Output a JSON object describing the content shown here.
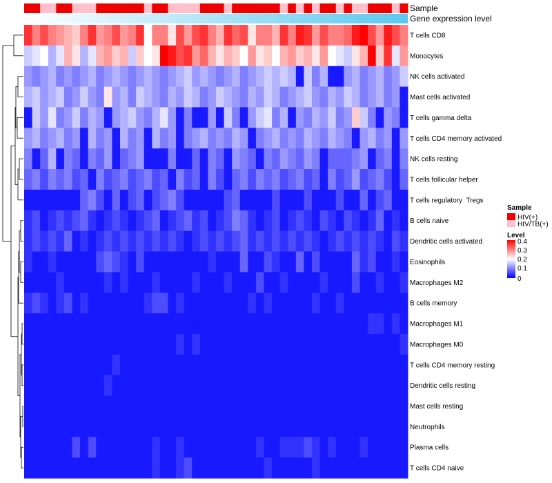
{
  "chart_data": {
    "type": "heatmap",
    "title": "",
    "annotation_tracks": [
      "Sample",
      "Gene expression level"
    ],
    "rows": [
      "T cells CD8",
      "Monocytes",
      "NK cells activated",
      "Mast cells activated",
      "T cells gamma delta",
      "T cells CD4 memory activated",
      "NK cells resting",
      "T cells follicular helper",
      "T cells regulatory  Tregs",
      "B cells naive",
      "Dendritic cells activated",
      "Eosinophils",
      "Macrophages M2",
      "B cells memory",
      "Macrophages M1",
      "Macrophages M0",
      "T cells CD4 memory resting",
      "Dendritic cells resting",
      "Mast cells resting",
      "Neutrophils",
      "Plasma cells",
      "T cells CD4 naive"
    ],
    "sample_groups": [
      "HIV(+)",
      "HIV(+)",
      "HIV/TB(+)",
      "HIV/TB(+)",
      "HIV(+)",
      "HIV(+)",
      "HIV/TB(+)",
      "HIV/TB(+)",
      "HIV/TB(+)",
      "HIV(+)",
      "HIV(+)",
      "HIV(+)",
      "HIV(+)",
      "HIV(+)",
      "HIV(+)",
      "HIV/TB(+)",
      "HIV(+)",
      "HIV(+)",
      "HIV/TB(+)",
      "HIV/TB(+)",
      "HIV/TB(+)",
      "HIV/TB(+)",
      "HIV(+)",
      "HIV(+)",
      "HIV(+)",
      "HIV/TB(+)",
      "HIV(+)",
      "HIV(+)",
      "HIV(+)",
      "HIV(+)",
      "HIV(+)",
      "HIV(+)",
      "HIV/TB(+)",
      "HIV(+)",
      "HIV/TB(+)",
      "HIV(+)",
      "HIV/TB(+)",
      "HIV(+)",
      "HIV(+)",
      "HIV/TB(+)",
      "HIV(+)",
      "HIV/TB(+)",
      "HIV/TB(+)",
      "HIV(+)",
      "HIV(+)",
      "HIV(+)",
      "HIV/TB(+)",
      "HIV(+)"
    ],
    "values": [
      [
        0.36,
        0.3,
        0.34,
        0.3,
        0.28,
        0.26,
        0.24,
        0.3,
        0.36,
        0.28,
        0.3,
        0.34,
        0.28,
        0.3,
        0.36,
        0.2,
        0.3,
        0.3,
        0.22,
        0.34,
        0.28,
        0.34,
        0.36,
        0.3,
        0.26,
        0.36,
        0.32,
        0.34,
        0.22,
        0.3,
        0.3,
        0.26,
        0.36,
        0.3,
        0.38,
        0.36,
        0.28,
        0.34,
        0.3,
        0.3,
        0.32,
        0.38,
        0.4,
        0.34,
        0.28,
        0.38,
        0.34,
        0.3
      ],
      [
        0.16,
        0.18,
        0.2,
        0.14,
        0.18,
        0.26,
        0.22,
        0.14,
        0.18,
        0.26,
        0.28,
        0.24,
        0.26,
        0.16,
        0.24,
        0.2,
        0.22,
        0.4,
        0.38,
        0.34,
        0.36,
        0.28,
        0.32,
        0.26,
        0.22,
        0.26,
        0.24,
        0.2,
        0.28,
        0.22,
        0.24,
        0.2,
        0.26,
        0.28,
        0.24,
        0.26,
        0.22,
        0.28,
        0.2,
        0.18,
        0.16,
        0.22,
        0.26,
        0.4,
        0.24,
        0.36,
        0.18,
        0.28
      ],
      [
        0.12,
        0.1,
        0.12,
        0.14,
        0.1,
        0.12,
        0.1,
        0.12,
        0.14,
        0.1,
        0.12,
        0.14,
        0.12,
        0.1,
        0.12,
        0.14,
        0.12,
        0.1,
        0.12,
        0.14,
        0.16,
        0.12,
        0.14,
        0.12,
        0.1,
        0.12,
        0.14,
        0.1,
        0.12,
        0.14,
        0.16,
        0.14,
        0.16,
        0.14,
        0.02,
        0.16,
        0.1,
        0.14,
        0.02,
        0.02,
        0.12,
        0.14,
        0.1,
        0.12,
        0.14,
        0.1,
        0.12,
        0.16
      ],
      [
        0.14,
        0.16,
        0.12,
        0.14,
        0.16,
        0.1,
        0.12,
        0.16,
        0.12,
        0.1,
        0.22,
        0.12,
        0.14,
        0.1,
        0.16,
        0.14,
        0.12,
        0.1,
        0.14,
        0.12,
        0.16,
        0.14,
        0.1,
        0.12,
        0.16,
        0.14,
        0.12,
        0.1,
        0.14,
        0.12,
        0.16,
        0.14,
        0.1,
        0.12,
        0.14,
        0.16,
        0.12,
        0.1,
        0.14,
        0.12,
        0.16,
        0.14,
        0.1,
        0.12,
        0.14,
        0.1,
        0.12,
        0.02
      ],
      [
        0.02,
        0.16,
        0.12,
        0.18,
        0.1,
        0.12,
        0.16,
        0.1,
        0.14,
        0.12,
        0.02,
        0.12,
        0.14,
        0.16,
        0.12,
        0.1,
        0.14,
        0.18,
        0.12,
        0.02,
        0.1,
        0.02,
        0.02,
        0.12,
        0.02,
        0.16,
        0.1,
        0.02,
        0.12,
        0.16,
        0.18,
        0.1,
        0.14,
        0.02,
        0.12,
        0.1,
        0.14,
        0.12,
        0.16,
        0.1,
        0.12,
        0.24,
        0.16,
        0.1,
        0.02,
        0.12,
        0.1,
        0.02
      ],
      [
        0.12,
        0.14,
        0.1,
        0.12,
        0.14,
        0.1,
        0.12,
        0.02,
        0.14,
        0.1,
        0.12,
        0.02,
        0.14,
        0.1,
        0.12,
        0.02,
        0.14,
        0.1,
        0.12,
        0.02,
        0.1,
        0.12,
        0.14,
        0.1,
        0.12,
        0.1,
        0.14,
        0.12,
        0.02,
        0.1,
        0.12,
        0.14,
        0.1,
        0.12,
        0.1,
        0.14,
        0.12,
        0.1,
        0.14,
        0.12,
        0.1,
        0.02,
        0.12,
        0.14,
        0.1,
        0.12,
        0.02,
        0.12
      ],
      [
        0.1,
        0.02,
        0.08,
        0.14,
        0.02,
        0.1,
        0.08,
        0.02,
        0.1,
        0.08,
        0.12,
        0.02,
        0.08,
        0.1,
        0.12,
        0.02,
        0.02,
        0.02,
        0.1,
        0.02,
        0.02,
        0.08,
        0.02,
        0.1,
        0.08,
        0.02,
        0.12,
        0.1,
        0.08,
        0.02,
        0.1,
        0.08,
        0.12,
        0.1,
        0.08,
        0.12,
        0.1,
        0.02,
        0.08,
        0.08,
        0.08,
        0.1,
        0.12,
        0.02,
        0.08,
        0.1,
        0.02,
        0.1
      ],
      [
        0.08,
        0.1,
        0.06,
        0.1,
        0.08,
        0.1,
        0.06,
        0.08,
        0.02,
        0.1,
        0.06,
        0.08,
        0.1,
        0.06,
        0.08,
        0.1,
        0.06,
        0.08,
        0.02,
        0.1,
        0.06,
        0.08,
        0.02,
        0.1,
        0.06,
        0.02,
        0.08,
        0.1,
        0.06,
        0.1,
        0.08,
        0.1,
        0.06,
        0.08,
        0.1,
        0.06,
        0.08,
        0.02,
        0.1,
        0.06,
        0.08,
        0.12,
        0.06,
        0.08,
        0.1,
        0.06,
        0.02,
        0.08
      ],
      [
        0.02,
        0.02,
        0.02,
        0.02,
        0.02,
        0.02,
        0.02,
        0.08,
        0.1,
        0.06,
        0.02,
        0.08,
        0.02,
        0.06,
        0.08,
        0.02,
        0.06,
        0.08,
        0.1,
        0.06,
        0.02,
        0.02,
        0.02,
        0.02,
        0.02,
        0.06,
        0.08,
        0.02,
        0.02,
        0.02,
        0.02,
        0.06,
        0.02,
        0.02,
        0.02,
        0.06,
        0.02,
        0.02,
        0.02,
        0.06,
        0.02,
        0.02,
        0.08,
        0.02,
        0.06,
        0.08,
        0.02,
        0.02
      ],
      [
        0.04,
        0.06,
        0.02,
        0.04,
        0.06,
        0.04,
        0.06,
        0.08,
        0.04,
        0.02,
        0.04,
        0.06,
        0.04,
        0.02,
        0.04,
        0.06,
        0.08,
        0.02,
        0.04,
        0.06,
        0.08,
        0.04,
        0.06,
        0.02,
        0.04,
        0.06,
        0.1,
        0.08,
        0.04,
        0.02,
        0.04,
        0.06,
        0.02,
        0.04,
        0.06,
        0.04,
        0.02,
        0.06,
        0.04,
        0.02,
        0.06,
        0.04,
        0.02,
        0.04,
        0.08,
        0.02,
        0.04,
        0.02
      ],
      [
        0.04,
        0.06,
        0.04,
        0.06,
        0.04,
        0.08,
        0.02,
        0.04,
        0.02,
        0.04,
        0.06,
        0.04,
        0.06,
        0.04,
        0.06,
        0.04,
        0.06,
        0.04,
        0.06,
        0.04,
        0.02,
        0.04,
        0.06,
        0.04,
        0.06,
        0.04,
        0.06,
        0.08,
        0.04,
        0.06,
        0.04,
        0.06,
        0.04,
        0.06,
        0.04,
        0.06,
        0.04,
        0.02,
        0.04,
        0.06,
        0.04,
        0.06,
        0.04,
        0.06,
        0.04,
        0.02,
        0.06,
        0.04
      ],
      [
        0.04,
        0.02,
        0.02,
        0.04,
        0.02,
        0.02,
        0.02,
        0.02,
        0.02,
        0.06,
        0.08,
        0.06,
        0.04,
        0.02,
        0.06,
        0.02,
        0.02,
        0.02,
        0.02,
        0.02,
        0.02,
        0.02,
        0.02,
        0.04,
        0.02,
        0.02,
        0.02,
        0.08,
        0.02,
        0.02,
        0.06,
        0.04,
        0.02,
        0.02,
        0.08,
        0.02,
        0.06,
        0.02,
        0.02,
        0.02,
        0.02,
        0.08,
        0.04,
        0.06,
        0.02,
        0.02,
        0.04,
        0.02
      ],
      [
        0.02,
        0.02,
        0.02,
        0.02,
        0.04,
        0.02,
        0.02,
        0.02,
        0.02,
        0.02,
        0.04,
        0.02,
        0.04,
        0.02,
        0.02,
        0.02,
        0.04,
        0.02,
        0.02,
        0.02,
        0.02,
        0.04,
        0.02,
        0.02,
        0.02,
        0.04,
        0.02,
        0.02,
        0.02,
        0.06,
        0.02,
        0.02,
        0.04,
        0.02,
        0.02,
        0.02,
        0.02,
        0.04,
        0.02,
        0.02,
        0.02,
        0.06,
        0.02,
        0.02,
        0.04,
        0.02,
        0.02,
        0.04
      ],
      [
        0.04,
        0.06,
        0.04,
        0.02,
        0.04,
        0.06,
        0.02,
        0.04,
        0.02,
        0.02,
        0.02,
        0.02,
        0.02,
        0.02,
        0.02,
        0.04,
        0.06,
        0.06,
        0.02,
        0.04,
        0.02,
        0.02,
        0.02,
        0.02,
        0.02,
        0.02,
        0.02,
        0.02,
        0.04,
        0.02,
        0.04,
        0.02,
        0.02,
        0.02,
        0.02,
        0.02,
        0.04,
        0.02,
        0.02,
        0.04,
        0.02,
        0.02,
        0.02,
        0.02,
        0.02,
        0.02,
        0.02,
        0.02
      ],
      [
        0.02,
        0.02,
        0.02,
        0.02,
        0.02,
        0.02,
        0.02,
        0.02,
        0.02,
        0.02,
        0.02,
        0.02,
        0.02,
        0.02,
        0.02,
        0.02,
        0.02,
        0.02,
        0.02,
        0.02,
        0.02,
        0.02,
        0.02,
        0.02,
        0.02,
        0.02,
        0.02,
        0.02,
        0.02,
        0.02,
        0.02,
        0.02,
        0.02,
        0.02,
        0.02,
        0.02,
        0.02,
        0.02,
        0.02,
        0.02,
        0.02,
        0.02,
        0.02,
        0.04,
        0.04,
        0.02,
        0.04,
        0.02
      ],
      [
        0.02,
        0.02,
        0.02,
        0.02,
        0.02,
        0.02,
        0.02,
        0.02,
        0.02,
        0.02,
        0.02,
        0.02,
        0.02,
        0.02,
        0.02,
        0.02,
        0.02,
        0.02,
        0.02,
        0.04,
        0.02,
        0.04,
        0.02,
        0.02,
        0.02,
        0.02,
        0.02,
        0.02,
        0.02,
        0.02,
        0.02,
        0.02,
        0.02,
        0.02,
        0.02,
        0.02,
        0.02,
        0.02,
        0.02,
        0.02,
        0.02,
        0.02,
        0.02,
        0.02,
        0.02,
        0.02,
        0.02,
        0.04
      ],
      [
        0.02,
        0.02,
        0.02,
        0.02,
        0.02,
        0.02,
        0.02,
        0.02,
        0.02,
        0.02,
        0.02,
        0.04,
        0.02,
        0.02,
        0.02,
        0.02,
        0.02,
        0.02,
        0.02,
        0.02,
        0.02,
        0.02,
        0.02,
        0.02,
        0.02,
        0.02,
        0.02,
        0.02,
        0.02,
        0.02,
        0.02,
        0.02,
        0.02,
        0.02,
        0.02,
        0.02,
        0.02,
        0.02,
        0.02,
        0.02,
        0.02,
        0.02,
        0.02,
        0.02,
        0.02,
        0.02,
        0.02,
        0.02
      ],
      [
        0.02,
        0.02,
        0.02,
        0.02,
        0.02,
        0.02,
        0.02,
        0.02,
        0.02,
        0.02,
        0.04,
        0.02,
        0.02,
        0.02,
        0.02,
        0.02,
        0.02,
        0.02,
        0.02,
        0.02,
        0.02,
        0.02,
        0.02,
        0.02,
        0.02,
        0.02,
        0.02,
        0.02,
        0.02,
        0.02,
        0.02,
        0.02,
        0.02,
        0.02,
        0.02,
        0.02,
        0.02,
        0.02,
        0.02,
        0.02,
        0.02,
        0.02,
        0.02,
        0.02,
        0.02,
        0.02,
        0.02,
        0.02
      ],
      [
        0.02,
        0.02,
        0.02,
        0.02,
        0.02,
        0.02,
        0.02,
        0.02,
        0.02,
        0.02,
        0.02,
        0.02,
        0.02,
        0.02,
        0.02,
        0.02,
        0.02,
        0.02,
        0.02,
        0.02,
        0.02,
        0.02,
        0.02,
        0.02,
        0.02,
        0.02,
        0.02,
        0.02,
        0.02,
        0.02,
        0.02,
        0.02,
        0.02,
        0.02,
        0.02,
        0.02,
        0.02,
        0.02,
        0.02,
        0.02,
        0.02,
        0.02,
        0.02,
        0.02,
        0.02,
        0.02,
        0.02,
        0.02
      ],
      [
        0.02,
        0.02,
        0.02,
        0.02,
        0.02,
        0.02,
        0.02,
        0.02,
        0.02,
        0.02,
        0.02,
        0.02,
        0.02,
        0.02,
        0.02,
        0.02,
        0.02,
        0.02,
        0.02,
        0.02,
        0.02,
        0.02,
        0.02,
        0.02,
        0.02,
        0.02,
        0.02,
        0.02,
        0.02,
        0.02,
        0.02,
        0.02,
        0.02,
        0.02,
        0.02,
        0.02,
        0.02,
        0.02,
        0.02,
        0.02,
        0.02,
        0.02,
        0.02,
        0.02,
        0.02,
        0.02,
        0.02,
        0.02
      ],
      [
        0.02,
        0.02,
        0.02,
        0.02,
        0.02,
        0.02,
        0.06,
        0.02,
        0.06,
        0.02,
        0.02,
        0.02,
        0.02,
        0.02,
        0.02,
        0.02,
        0.04,
        0.02,
        0.02,
        0.04,
        0.02,
        0.02,
        0.02,
        0.02,
        0.02,
        0.02,
        0.02,
        0.02,
        0.02,
        0.04,
        0.02,
        0.02,
        0.04,
        0.04,
        0.04,
        0.06,
        0.04,
        0.02,
        0.04,
        0.02,
        0.02,
        0.02,
        0.04,
        0.02,
        0.02,
        0.02,
        0.02,
        0.02
      ],
      [
        0.02,
        0.02,
        0.02,
        0.02,
        0.02,
        0.02,
        0.02,
        0.02,
        0.02,
        0.02,
        0.02,
        0.02,
        0.02,
        0.02,
        0.02,
        0.02,
        0.04,
        0.02,
        0.02,
        0.04,
        0.06,
        0.02,
        0.02,
        0.02,
        0.02,
        0.02,
        0.02,
        0.02,
        0.02,
        0.02,
        0.04,
        0.02,
        0.02,
        0.02,
        0.02,
        0.02,
        0.04,
        0.02,
        0.02,
        0.02,
        0.02,
        0.02,
        0.02,
        0.02,
        0.02,
        0.02,
        0.02,
        0.02
      ]
    ],
    "legend": {
      "sample_title": "Sample",
      "sample_entries": [
        {
          "label": "HIV(+)",
          "color": "#ee0000"
        },
        {
          "label": "HIV/TB(+)",
          "color": "#ffbfcb"
        }
      ],
      "level_title": "Level",
      "level_ticks": [
        "0.4",
        "0.3",
        "0.2",
        "0.1",
        "0"
      ],
      "level_range": [
        0,
        0.4
      ]
    },
    "colors": {
      "low": "#0000ff",
      "mid": "#ffffff",
      "high": "#ff0000",
      "gene_track_left": "#ffffff",
      "gene_track_right": "#5bc8ef"
    }
  }
}
